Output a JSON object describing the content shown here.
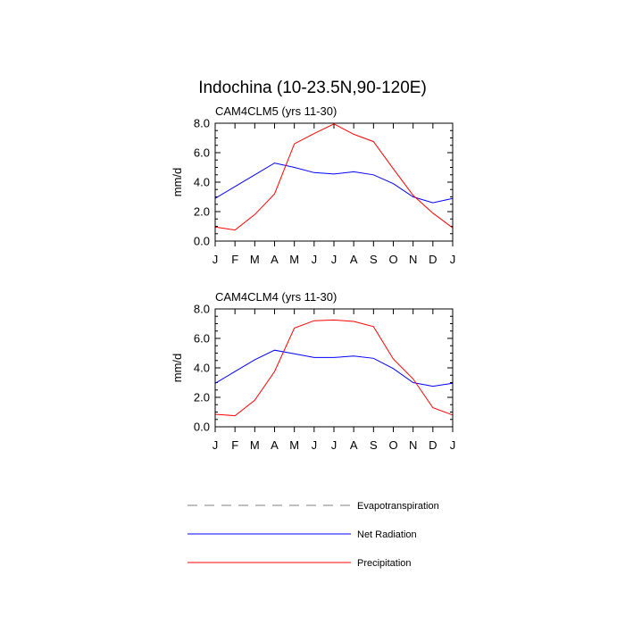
{
  "title": "Indochina (10-23.5N,90-120E)",
  "colors": {
    "evapotranspiration": "#7f7f7f",
    "net_radiation": "#0000ff",
    "precipitation": "#ff0000",
    "axis": "#000000"
  },
  "legend": {
    "items": [
      {
        "label": "Evapotranspiration",
        "series": "evapotranspiration",
        "style": "dashed"
      },
      {
        "label": "Net Radiation",
        "series": "net_radiation",
        "style": "solid"
      },
      {
        "label": "Precipitation",
        "series": "precipitation",
        "style": "solid"
      }
    ]
  },
  "chart_data": [
    {
      "type": "line",
      "title": "CAM4CLM5 (yrs 11-30)",
      "xlabel": "",
      "ylabel": "mm/d",
      "categories": [
        "J",
        "F",
        "M",
        "A",
        "M",
        "J",
        "J",
        "A",
        "S",
        "O",
        "N",
        "D",
        "J"
      ],
      "ylim": [
        0,
        8
      ],
      "yticks": [
        "0.0",
        "2.0",
        "4.0",
        "6.0",
        "8.0"
      ],
      "series": [
        {
          "name": "Net Radiation",
          "key": "net_radiation",
          "values": [
            2.9,
            3.7,
            4.5,
            5.3,
            5.0,
            4.65,
            4.55,
            4.7,
            4.5,
            3.9,
            3.0,
            2.6,
            2.9
          ]
        },
        {
          "name": "Precipitation",
          "key": "precipitation",
          "values": [
            0.95,
            0.75,
            1.8,
            3.2,
            6.6,
            7.3,
            7.95,
            7.25,
            6.75,
            4.9,
            3.1,
            1.9,
            0.9
          ]
        }
      ]
    },
    {
      "type": "line",
      "title": "CAM4CLM4 (yrs 11-30)",
      "xlabel": "",
      "ylabel": "mm/d",
      "categories": [
        "J",
        "F",
        "M",
        "A",
        "M",
        "J",
        "J",
        "A",
        "S",
        "O",
        "N",
        "D",
        "J"
      ],
      "ylim": [
        0,
        8
      ],
      "yticks": [
        "0.0",
        "2.0",
        "4.0",
        "6.0",
        "8.0"
      ],
      "series": [
        {
          "name": "Net Radiation",
          "key": "net_radiation",
          "values": [
            2.95,
            3.75,
            4.55,
            5.2,
            4.95,
            4.7,
            4.7,
            4.8,
            4.65,
            3.95,
            3.0,
            2.75,
            2.95
          ]
        },
        {
          "name": "Precipitation",
          "key": "precipitation",
          "values": [
            0.85,
            0.75,
            1.8,
            3.75,
            6.7,
            7.2,
            7.25,
            7.15,
            6.8,
            4.6,
            3.25,
            1.3,
            0.8
          ]
        }
      ]
    }
  ]
}
